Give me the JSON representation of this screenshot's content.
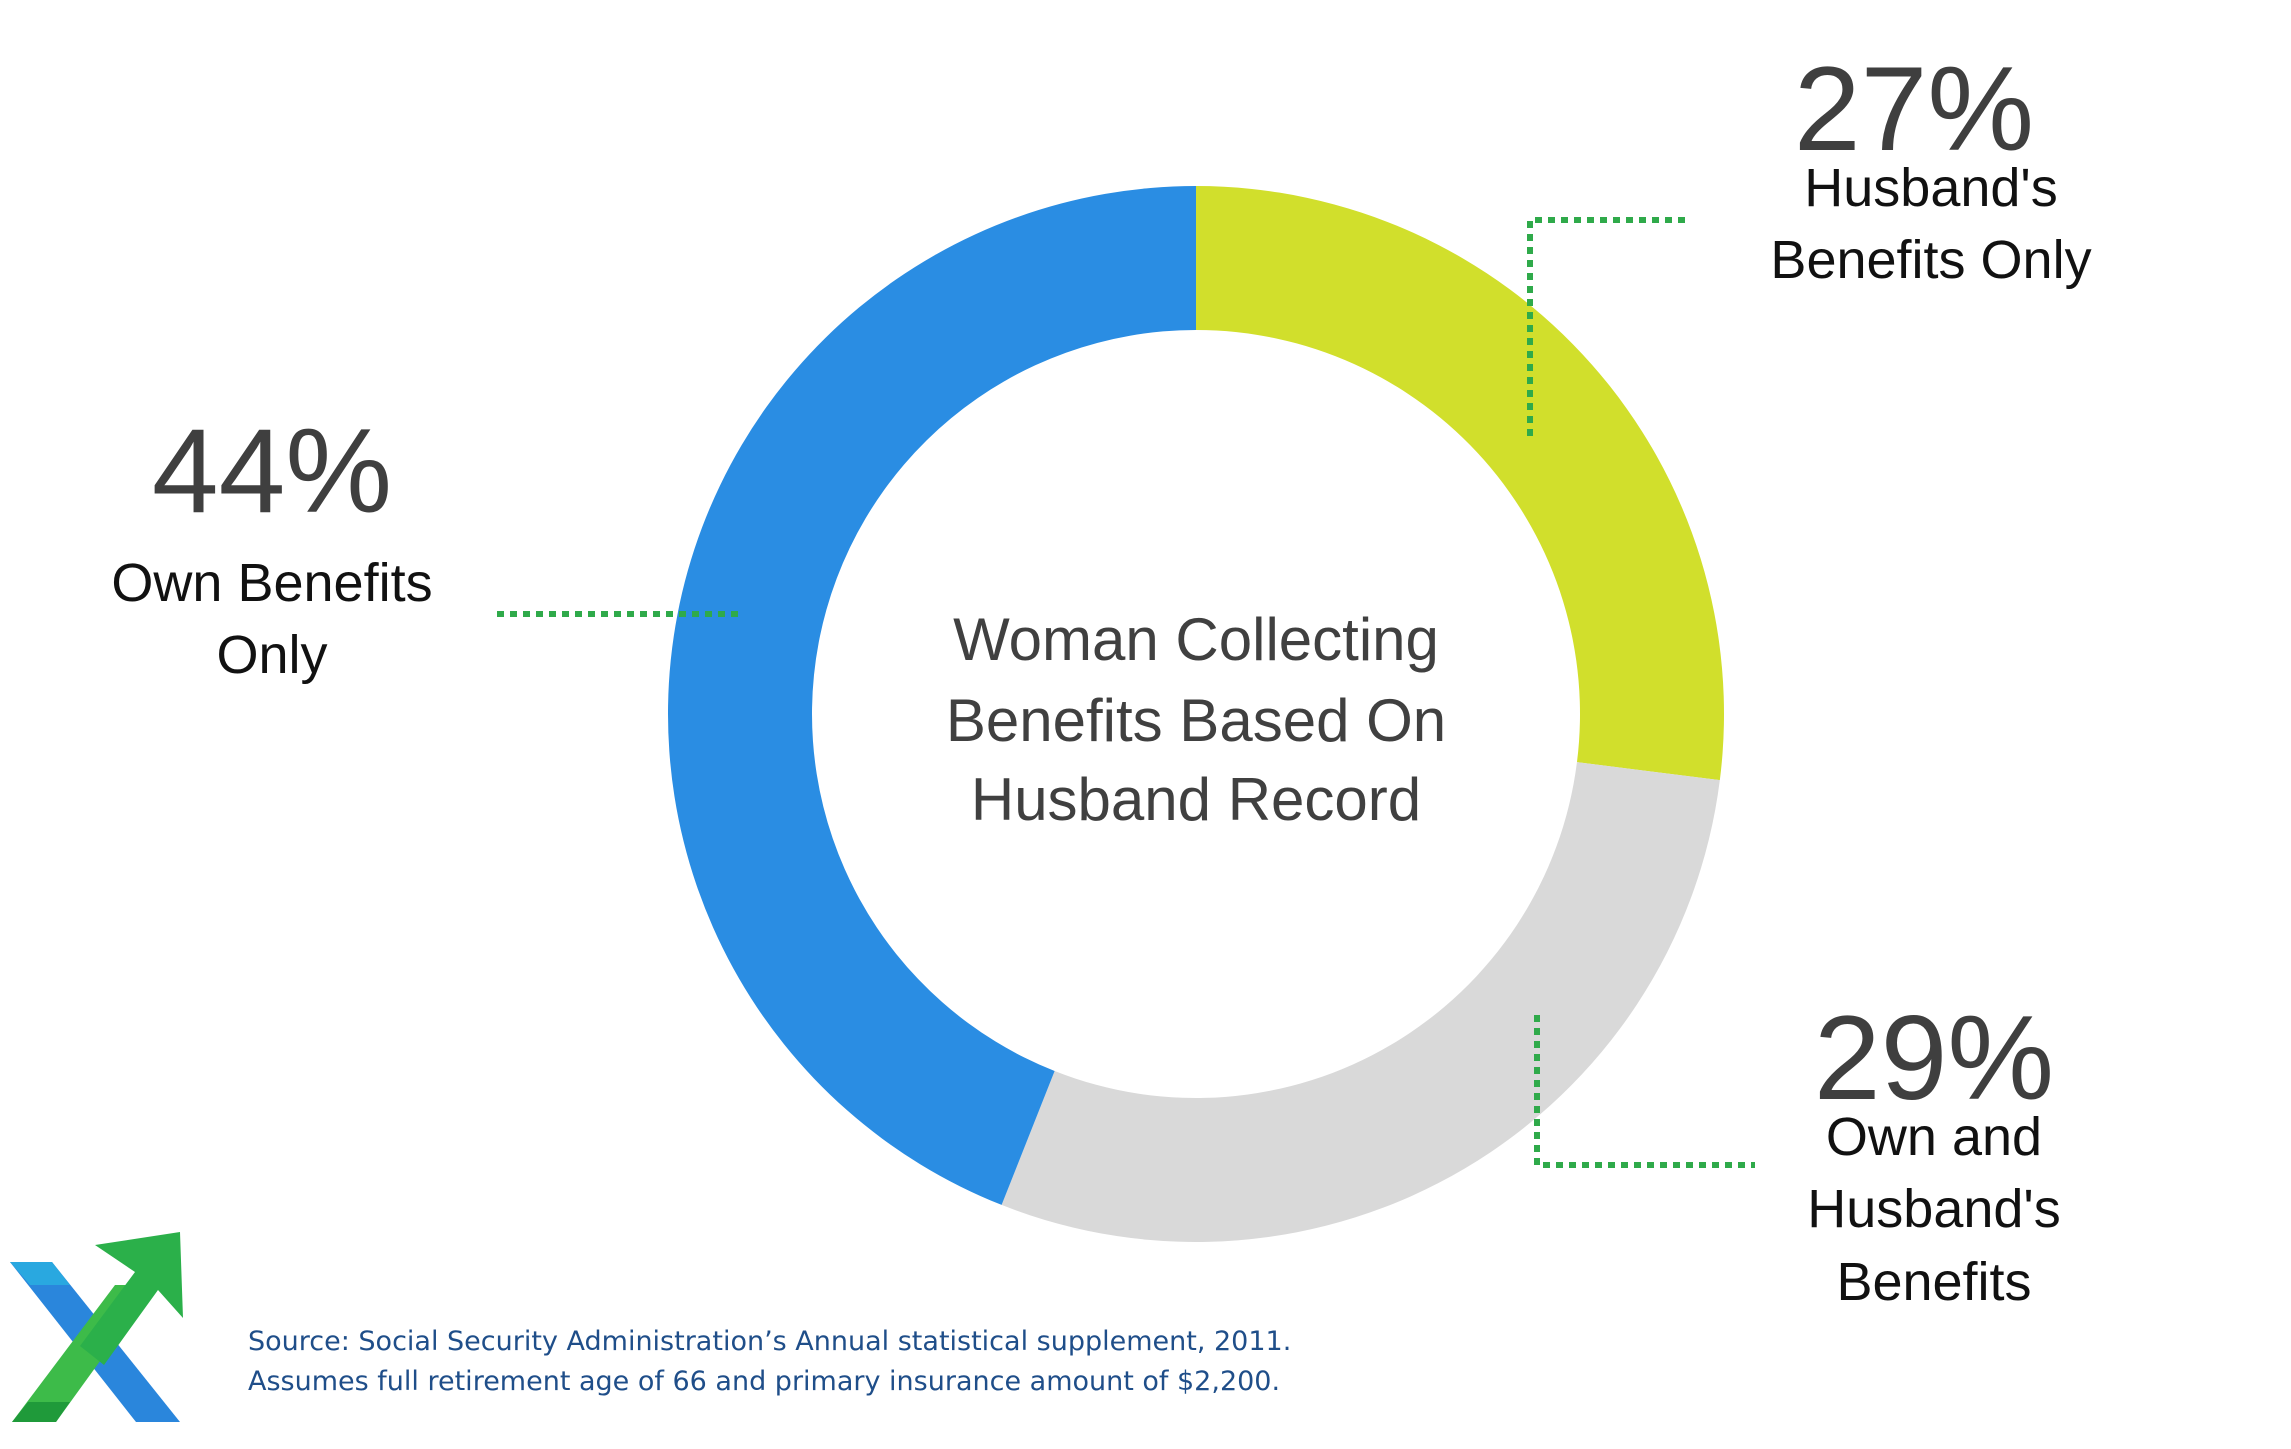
{
  "chart_data": {
    "type": "pie",
    "style": "donut",
    "center_label": [
      "Woman Collecting",
      "Benefits Based On",
      "Husband Record"
    ],
    "slices": [
      {
        "label": [
          "Husband's",
          "Benefits Only"
        ],
        "value": 27,
        "display": "27%",
        "color": "#d1df2c"
      },
      {
        "label": [
          "Own and",
          "Husband's",
          "Benefits"
        ],
        "value": 29,
        "display": "29%",
        "color": "#d9d9d9"
      },
      {
        "label": [
          "Own Benefits",
          "Only"
        ],
        "value": 44,
        "display": "44%",
        "color": "#2a8de3"
      }
    ],
    "start": "12 o'clock",
    "direction": "clockwise",
    "leader_line_color": "#2faa4a"
  },
  "footer": {
    "source_line1": "Source: Social Security Administration’s Annual statistical supplement, 2011.",
    "source_line2": "Assumes full retirement age of 66 and primary insurance amount of $2,200."
  },
  "logo": {
    "icon": "x-arrow-logo-icon",
    "colors": [
      "#29a8e0",
      "#2a78d8",
      "#3dbb49",
      "#1f9a3a"
    ]
  }
}
